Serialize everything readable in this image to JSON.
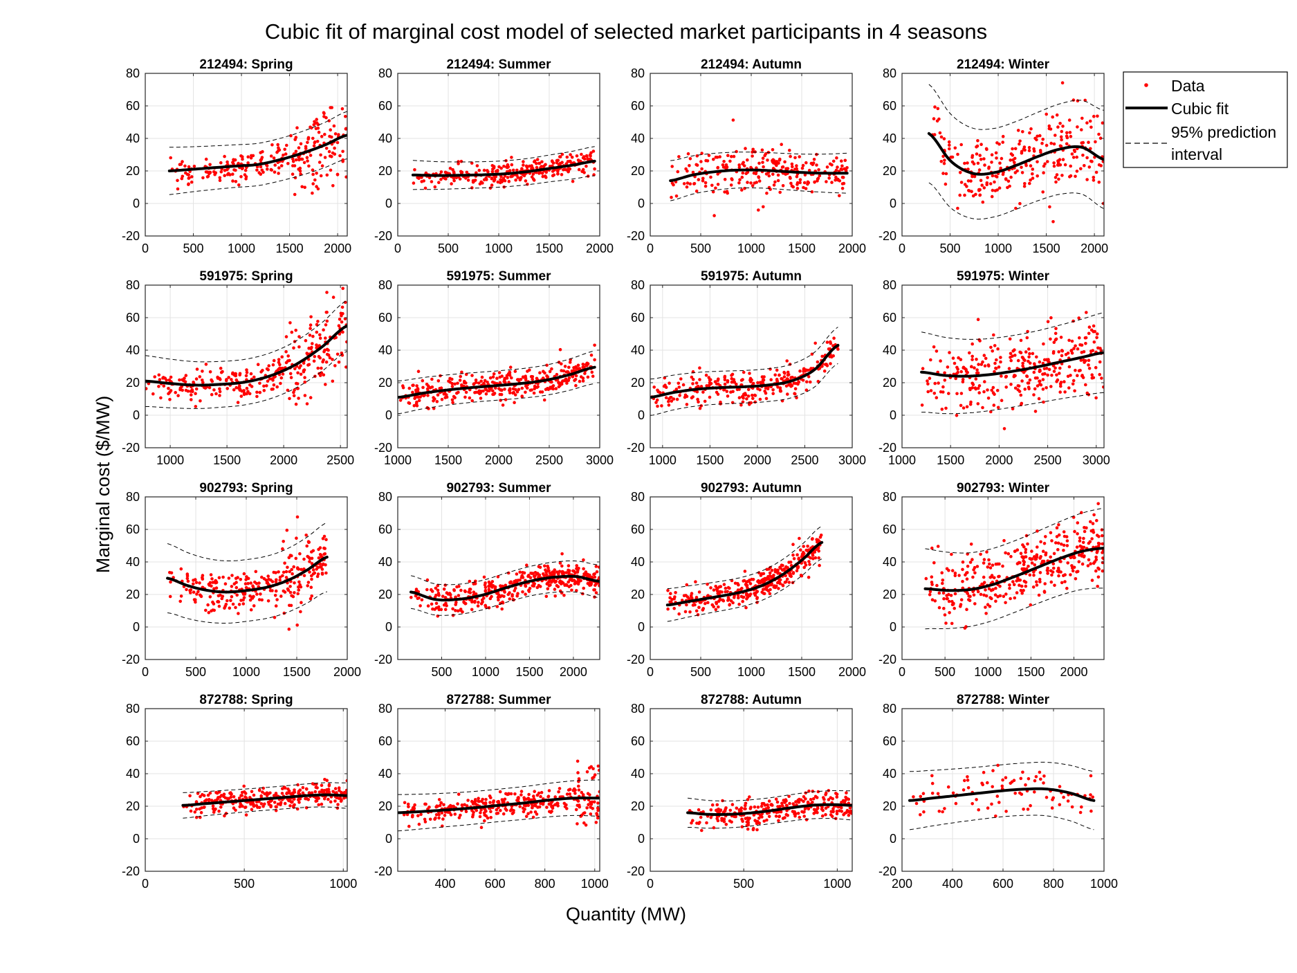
{
  "figure": {
    "title": "Cubic fit of marginal cost model of selected market participants in 4 seasons",
    "xlabel": "Quantity (MW)",
    "ylabel": "Marginal cost ($/MW)"
  },
  "legend": {
    "placement": "top-right, outside plots",
    "items": [
      {
        "label": "Data",
        "style": "red dots"
      },
      {
        "label": "Cubic fit",
        "style": "thick black line"
      },
      {
        "label": "95% prediction",
        "label2": "interval",
        "style": "dashed black line"
      }
    ]
  },
  "colors": {
    "data": "#ff0000",
    "fit": "#000000",
    "interval": "#000000",
    "grid": "#e3e3e3"
  },
  "chart_data": [
    {
      "type": "scatter",
      "title": "212494: Spring",
      "xlim": [
        0,
        2100
      ],
      "ylim": [
        -20,
        80
      ],
      "xticks": [
        0,
        500,
        1000,
        1500,
        2000
      ],
      "yticks": [
        -20,
        0,
        20,
        40,
        60,
        80
      ],
      "grid": true,
      "data_x": [
        250,
        2100
      ],
      "fit_x": [
        250,
        2100
      ],
      "fit_y": [
        20,
        21,
        22,
        23,
        24,
        27,
        31,
        36,
        42
      ],
      "band": 13,
      "noise": 4.5,
      "spread": [
        [
          1500,
          2100,
          11
        ]
      ],
      "n": 260,
      "seed": 11
    },
    {
      "type": "scatter",
      "title": "212494: Summer",
      "xlim": [
        0,
        2000
      ],
      "ylim": [
        -20,
        80
      ],
      "xticks": [
        0,
        500,
        1000,
        1500,
        2000
      ],
      "yticks": [
        -20,
        0,
        20,
        40,
        60,
        80
      ],
      "grid": true,
      "data_x": [
        150,
        1950
      ],
      "fit_x": [
        150,
        1950
      ],
      "fit_y": [
        17.5,
        17.2,
        17.3,
        17.6,
        18.2,
        19.5,
        21.5,
        23.5,
        26
      ],
      "band": 8,
      "noise": 3.5,
      "spread": [],
      "n": 300,
      "seed": 12
    },
    {
      "type": "scatter",
      "title": "212494: Autumn",
      "xlim": [
        0,
        2000
      ],
      "ylim": [
        -20,
        80
      ],
      "xticks": [
        0,
        500,
        1000,
        1500,
        2000
      ],
      "yticks": [
        -20,
        0,
        20,
        40,
        60,
        80
      ],
      "grid": true,
      "data_x": [
        200,
        1950
      ],
      "fit_x": [
        200,
        1950
      ],
      "fit_y": [
        14,
        17.5,
        19.5,
        20.5,
        20.5,
        19.8,
        19,
        18.6,
        18.6
      ],
      "band": 11,
      "noise": 6,
      "spread": [
        [
          550,
          1200,
          9
        ]
      ],
      "n": 260,
      "seed": 13
    },
    {
      "type": "scatter",
      "title": "212494: Winter",
      "xlim": [
        0,
        2100
      ],
      "ylim": [
        -20,
        80
      ],
      "xticks": [
        0,
        500,
        1000,
        1500,
        2000
      ],
      "yticks": [
        -20,
        0,
        20,
        40,
        60,
        80
      ],
      "grid": true,
      "data_x": [
        280,
        2100
      ],
      "fit_x": [
        280,
        2100
      ],
      "fit_y": [
        43,
        26,
        18.5,
        19,
        23.5,
        29,
        33.5,
        34.5,
        27
      ],
      "band": 27,
      "noise": 11,
      "spread": [
        [
          1400,
          2100,
          14
        ]
      ],
      "n": 280,
      "seed": 14
    },
    {
      "type": "scatter",
      "title": "591975: Spring",
      "xlim": [
        780,
        2560
      ],
      "ylim": [
        -20,
        80
      ],
      "xticks": [
        1000,
        1500,
        2000,
        2500
      ],
      "yticks": [
        -20,
        0,
        20,
        40,
        60,
        80
      ],
      "grid": true,
      "data_x": [
        780,
        2560
      ],
      "fit_x": [
        780,
        2560
      ],
      "fit_y": [
        21,
        19.5,
        18.5,
        19,
        20.5,
        24.5,
        31.5,
        42,
        55
      ],
      "band": 14,
      "noise": 5,
      "spread": [
        [
          2000,
          2560,
          12
        ]
      ],
      "n": 320,
      "seed": 21
    },
    {
      "type": "scatter",
      "title": "591975: Summer",
      "xlim": [
        1000,
        3000
      ],
      "ylim": [
        -20,
        80
      ],
      "xticks": [
        1000,
        1500,
        2000,
        2500,
        3000
      ],
      "yticks": [
        -20,
        0,
        20,
        40,
        60,
        80
      ],
      "grid": true,
      "data_x": [
        1000,
        2950
      ],
      "fit_x": [
        1000,
        2950
      ],
      "fit_y": [
        11,
        13.5,
        15.5,
        17,
        18.2,
        19.5,
        21.5,
        25,
        29.5
      ],
      "band": 9,
      "noise": 4.5,
      "spread": [],
      "n": 360,
      "seed": 22
    },
    {
      "type": "scatter",
      "title": "591975: Autumn",
      "xlim": [
        870,
        3000
      ],
      "ylim": [
        -20,
        80
      ],
      "xticks": [
        1000,
        1500,
        2000,
        2500,
        3000
      ],
      "yticks": [
        -20,
        0,
        20,
        40,
        60,
        80
      ],
      "grid": true,
      "data_x": [
        870,
        2850
      ],
      "fit_x": [
        870,
        2850
      ],
      "fit_y": [
        11,
        14,
        16,
        17,
        17.5,
        18.5,
        21,
        28,
        43
      ],
      "band": 10,
      "noise": 5,
      "spread": [],
      "n": 300,
      "seed": 23
    },
    {
      "type": "scatter",
      "title": "591975: Winter",
      "xlim": [
        1000,
        3080
      ],
      "ylim": [
        -20,
        80
      ],
      "xticks": [
        1000,
        1500,
        2000,
        2500,
        3000
      ],
      "yticks": [
        -20,
        0,
        20,
        40,
        60,
        80
      ],
      "grid": true,
      "data_x": [
        1200,
        3080
      ],
      "fit_x": [
        1200,
        3080
      ],
      "fit_y": [
        26.5,
        24.5,
        24,
        25,
        27,
        29.5,
        32.5,
        35.5,
        38.5
      ],
      "band": 22,
      "noise": 11,
      "spread": [],
      "n": 330,
      "seed": 24
    },
    {
      "type": "scatter",
      "title": "902793: Spring",
      "xlim": [
        0,
        2000
      ],
      "ylim": [
        -20,
        80
      ],
      "xticks": [
        0,
        500,
        1000,
        1500,
        2000
      ],
      "yticks": [
        -20,
        0,
        20,
        40,
        60,
        80
      ],
      "grid": true,
      "data_x": [
        220,
        1800
      ],
      "fit_x": [
        220,
        1800
      ],
      "fit_y": [
        30,
        25.5,
        22.5,
        21.5,
        22.5,
        24.5,
        28.5,
        35,
        43
      ],
      "band": 19,
      "noise": 6,
      "spread": [
        [
          1350,
          1650,
          14
        ]
      ],
      "n": 300,
      "seed": 31
    },
    {
      "type": "scatter",
      "title": "902793: Summer",
      "xlim": [
        0,
        2300
      ],
      "ylim": [
        -20,
        80
      ],
      "xticks": [
        500,
        1000,
        1500,
        2000
      ],
      "yticks": [
        -20,
        0,
        20,
        40,
        60,
        80
      ],
      "grid": true,
      "data_x": [
        150,
        2300
      ],
      "fit_x": [
        150,
        2300
      ],
      "fit_y": [
        21.5,
        17,
        17,
        19.5,
        24,
        28,
        30.5,
        31,
        28
      ],
      "band": 9,
      "noise": 4.5,
      "spread": [],
      "n": 420,
      "seed": 32
    },
    {
      "type": "scatter",
      "title": "902793: Autumn",
      "xlim": [
        0,
        2000
      ],
      "ylim": [
        -20,
        80
      ],
      "xticks": [
        0,
        500,
        1000,
        1500,
        2000
      ],
      "yticks": [
        -20,
        0,
        20,
        40,
        60,
        80
      ],
      "grid": true,
      "data_x": [
        170,
        1700
      ],
      "fit_x": [
        170,
        1700
      ],
      "fit_y": [
        13.5,
        15.5,
        17.5,
        19.5,
        22,
        26,
        32.5,
        41.5,
        52
      ],
      "band": 9,
      "noise": 4.5,
      "spread": [],
      "n": 360,
      "seed": 33
    },
    {
      "type": "scatter",
      "title": "902793: Winter",
      "xlim": [
        0,
        2350
      ],
      "ylim": [
        -20,
        80
      ],
      "xticks": [
        0,
        500,
        1000,
        1500,
        2000
      ],
      "yticks": [
        -20,
        0,
        20,
        40,
        60,
        80
      ],
      "grid": true,
      "data_x": [
        270,
        2350
      ],
      "fit_x": [
        270,
        2350
      ],
      "fit_y": [
        23.5,
        22.5,
        23,
        26,
        31,
        36.5,
        42,
        46.5,
        48.5
      ],
      "band": 22,
      "noise": 10,
      "spread": [],
      "n": 380,
      "seed": 34
    },
    {
      "type": "scatter",
      "title": "872788: Spring",
      "xlim": [
        0,
        1020
      ],
      "ylim": [
        -20,
        80
      ],
      "xticks": [
        0,
        500,
        1000
      ],
      "yticks": [
        -20,
        0,
        20,
        40,
        60,
        80
      ],
      "grid": true,
      "data_x": [
        190,
        1020
      ],
      "fit_x": [
        190,
        1020
      ],
      "fit_y": [
        20.5,
        21.5,
        22.5,
        23.5,
        24.5,
        25.5,
        26.5,
        27,
        26.5
      ],
      "band": 7,
      "noise": 3.5,
      "spread": [],
      "n": 300,
      "seed": 41
    },
    {
      "type": "scatter",
      "title": "872788: Summer",
      "xlim": [
        210,
        1020
      ],
      "ylim": [
        -20,
        80
      ],
      "xticks": [
        400,
        600,
        800,
        1000
      ],
      "yticks": [
        -20,
        0,
        20,
        40,
        60,
        80
      ],
      "grid": true,
      "data_x": [
        210,
        1020
      ],
      "fit_x": [
        210,
        1020
      ],
      "fit_y": [
        16,
        16.8,
        17.8,
        19,
        20.5,
        22,
        23.8,
        25,
        25
      ],
      "band": 10,
      "noise": 4,
      "spread": [
        [
          920,
          1020,
          9
        ]
      ],
      "n": 330,
      "seed": 42
    },
    {
      "type": "scatter",
      "title": "872788: Autumn",
      "xlim": [
        0,
        1080
      ],
      "ylim": [
        -20,
        80
      ],
      "xticks": [
        0,
        500,
        1000
      ],
      "yticks": [
        -20,
        0,
        20,
        40,
        60,
        80
      ],
      "grid": true,
      "data_x": [
        200,
        1080
      ],
      "fit_x": [
        200,
        1080
      ],
      "fit_y": [
        16,
        15,
        15,
        15.8,
        17.2,
        19,
        20.5,
        21,
        20.5
      ],
      "band": 8,
      "noise": 4,
      "spread": [],
      "n": 280,
      "seed": 43
    },
    {
      "type": "scatter",
      "title": "872788: Winter",
      "xlim": [
        200,
        1000
      ],
      "ylim": [
        -20,
        80
      ],
      "xticks": [
        200,
        400,
        600,
        800,
        1000
      ],
      "yticks": [
        -20,
        0,
        20,
        40,
        60,
        80
      ],
      "grid": true,
      "data_x": [
        230,
        960
      ],
      "fit_x": [
        230,
        960
      ],
      "fit_y": [
        23.5,
        25,
        26.5,
        28,
        29.5,
        30.5,
        30.5,
        28,
        23.5
      ],
      "band": 16,
      "noise": 7,
      "spread": [
        [
          560,
          680,
          9
        ]
      ],
      "n": 90,
      "seed": 44
    }
  ]
}
